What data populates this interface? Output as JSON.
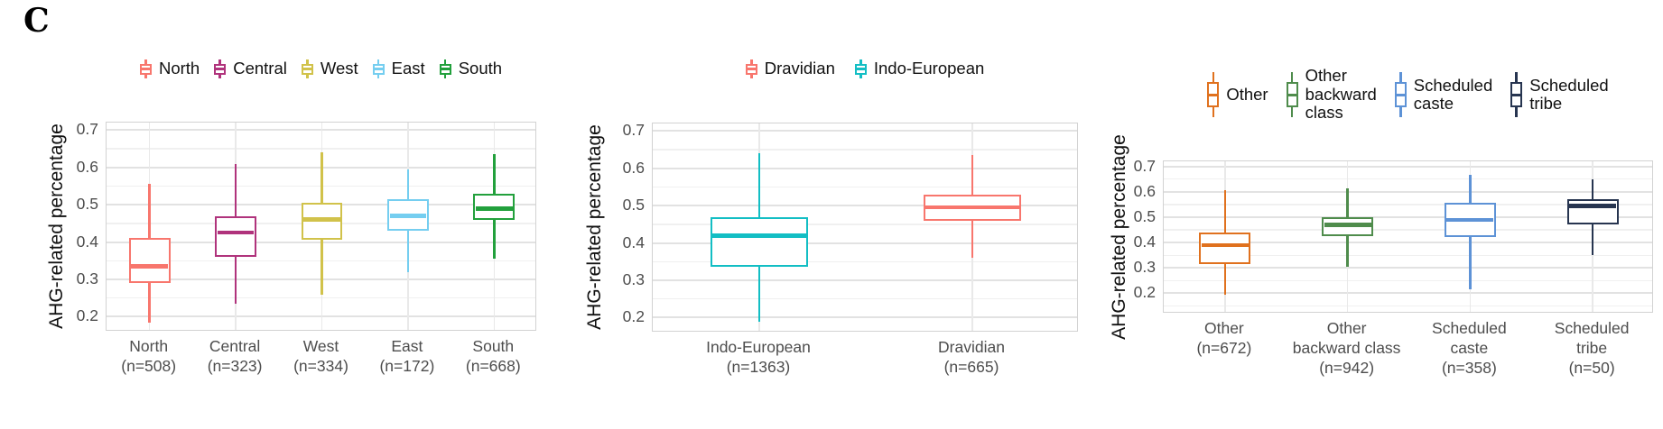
{
  "figure": {
    "panel_label": "C",
    "background": "#ffffff",
    "shared_ylabel": "AHG-related percentage"
  },
  "chart_data": [
    {
      "type": "boxplot",
      "title": "",
      "ylabel": "AHG-related percentage",
      "xlabel": "",
      "yticks": [
        "0.7",
        "0.6",
        "0.5",
        "0.4",
        "0.3",
        "0.2"
      ],
      "ylim": [
        0.16,
        0.72
      ],
      "grid": "horizontal major+minor, vertical at categories",
      "legend_position": "top",
      "legend": [
        {
          "label_lines": [
            "North"
          ],
          "color": "#F8766D"
        },
        {
          "label_lines": [
            "Central"
          ],
          "color": "#B0337C"
        },
        {
          "label_lines": [
            "West"
          ],
          "color": "#D1C24A"
        },
        {
          "label_lines": [
            "East"
          ],
          "color": "#75CEF0"
        },
        {
          "label_lines": [
            "South"
          ],
          "color": "#22A03C"
        }
      ],
      "series": [
        {
          "name": "North",
          "color": "#F8766D",
          "tick_lines": [
            "North",
            "(n=508)"
          ],
          "stats": {
            "min": 0.185,
            "q1": 0.29,
            "median": 0.335,
            "q3": 0.41,
            "max": 0.555
          }
        },
        {
          "name": "Central",
          "color": "#B0337C",
          "tick_lines": [
            "Central",
            "(n=323)"
          ],
          "stats": {
            "min": 0.235,
            "q1": 0.36,
            "median": 0.425,
            "q3": 0.47,
            "max": 0.61
          }
        },
        {
          "name": "West",
          "color": "#D1C24A",
          "tick_lines": [
            "West",
            "(n=334)"
          ],
          "stats": {
            "min": 0.26,
            "q1": 0.405,
            "median": 0.46,
            "q3": 0.505,
            "max": 0.64
          }
        },
        {
          "name": "East",
          "color": "#75CEF0",
          "tick_lines": [
            "East",
            "(n=172)"
          ],
          "stats": {
            "min": 0.32,
            "q1": 0.43,
            "median": 0.47,
            "q3": 0.515,
            "max": 0.595
          }
        },
        {
          "name": "South",
          "color": "#22A03C",
          "tick_lines": [
            "South",
            "(n=668)"
          ],
          "stats": {
            "min": 0.355,
            "q1": 0.46,
            "median": 0.49,
            "q3": 0.53,
            "max": 0.635
          }
        }
      ]
    },
    {
      "type": "boxplot",
      "title": "",
      "ylabel": "AHG-related percentage",
      "xlabel": "",
      "yticks": [
        "0.7",
        "0.6",
        "0.5",
        "0.4",
        "0.3",
        "0.2"
      ],
      "ylim": [
        0.16,
        0.72
      ],
      "grid": "horizontal major+minor, vertical at categories",
      "legend_position": "top",
      "legend": [
        {
          "label_lines": [
            "Dravidian"
          ],
          "color": "#F8766D"
        },
        {
          "label_lines": [
            "Indo-European"
          ],
          "color": "#13BEC4"
        }
      ],
      "series": [
        {
          "name": "Indo-European",
          "color": "#13BEC4",
          "tick_lines": [
            "Indo-European",
            "(n=1363)"
          ],
          "stats": {
            "min": 0.19,
            "q1": 0.335,
            "median": 0.42,
            "q3": 0.47,
            "max": 0.64
          }
        },
        {
          "name": "Dravidian",
          "color": "#F8766D",
          "tick_lines": [
            "Dravidian",
            "(n=665)"
          ],
          "stats": {
            "min": 0.36,
            "q1": 0.46,
            "median": 0.495,
            "q3": 0.53,
            "max": 0.635
          }
        }
      ]
    },
    {
      "type": "boxplot",
      "title": "",
      "ylabel": "AHG-related percentage",
      "xlabel": "",
      "yticks": [
        "0.7",
        "0.6",
        "0.5",
        "0.4",
        "0.3",
        "0.2"
      ],
      "ylim": [
        0.12,
        0.72
      ],
      "grid": "horizontal major+minor, vertical at categories",
      "legend_position": "top",
      "legend": [
        {
          "label_lines": [
            "Other"
          ],
          "color": "#E0711E"
        },
        {
          "label_lines": [
            "Other",
            "backward",
            "class"
          ],
          "color": "#4F8C4C"
        },
        {
          "label_lines": [
            "Scheduled",
            "caste"
          ],
          "color": "#5D92D6"
        },
        {
          "label_lines": [
            "Scheduled",
            "tribe"
          ],
          "color": "#273550"
        }
      ],
      "series": [
        {
          "name": "Other",
          "color": "#E0711E",
          "tick_lines": [
            "Other",
            "(n=672)"
          ],
          "stats": {
            "min": 0.195,
            "q1": 0.315,
            "median": 0.39,
            "q3": 0.44,
            "max": 0.605
          }
        },
        {
          "name": "Other backward class",
          "color": "#4F8C4C",
          "tick_lines": [
            "Other",
            "backward class",
            "(n=942)"
          ],
          "stats": {
            "min": 0.305,
            "q1": 0.425,
            "median": 0.47,
            "q3": 0.5,
            "max": 0.615
          }
        },
        {
          "name": "Scheduled caste",
          "color": "#5D92D6",
          "tick_lines": [
            "Scheduled",
            "caste",
            "(n=358)"
          ],
          "stats": {
            "min": 0.215,
            "q1": 0.42,
            "median": 0.49,
            "q3": 0.555,
            "max": 0.665
          }
        },
        {
          "name": "Scheduled tribe",
          "color": "#273550",
          "tick_lines": [
            "Scheduled",
            "tribe",
            "(n=50)"
          ],
          "stats": {
            "min": 0.35,
            "q1": 0.47,
            "median": 0.545,
            "q3": 0.572,
            "max": 0.65
          }
        }
      ]
    }
  ]
}
